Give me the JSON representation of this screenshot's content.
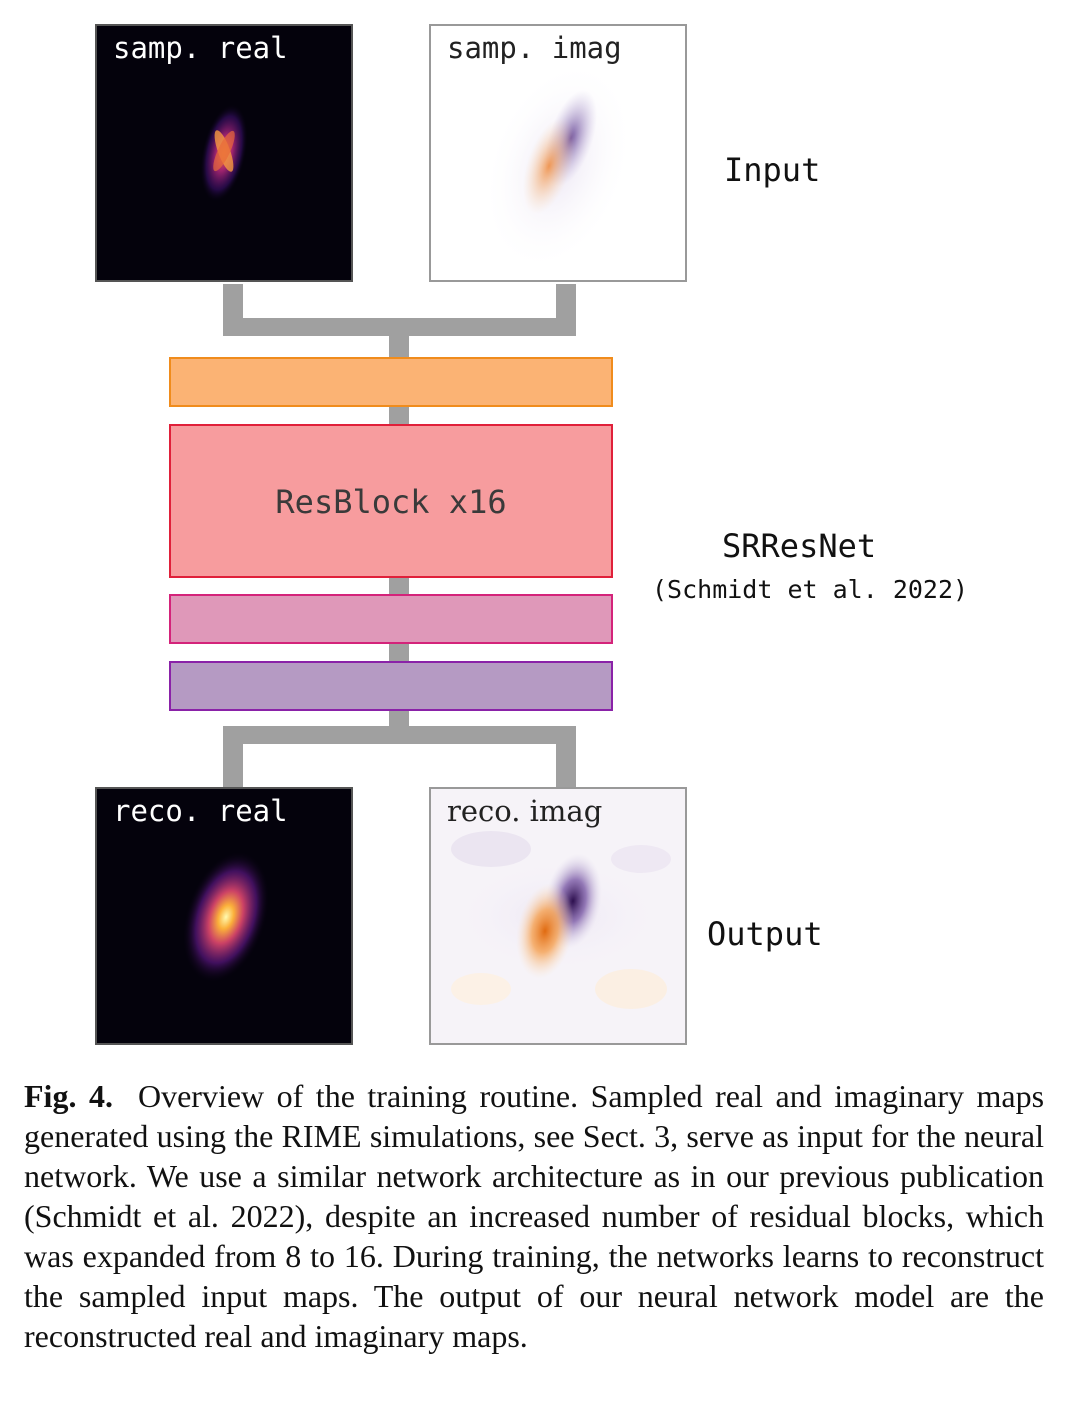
{
  "input_panels": {
    "real": {
      "label": "samp. real"
    },
    "imag": {
      "label": "samp. imag"
    }
  },
  "output_panels": {
    "real": {
      "label": "reco. real"
    },
    "imag": {
      "label": "reco. imag"
    }
  },
  "network": {
    "resblock_label": "ResBlock x16",
    "name": "SRResNet",
    "citation": "(Schmidt et al. 2022)",
    "layer_colors": [
      "#fbb374",
      "#f79c9e",
      "#df98b9",
      "#b59ac3"
    ]
  },
  "side_labels": {
    "input": "Input",
    "output": "Output"
  },
  "caption": {
    "label": "Fig. 4.",
    "text": "Overview of the training routine. Sampled real and imaginary maps generated using the RIME simulations, see Sect. 3, serve as input for the neural network. We use a similar network architecture as in our previous publication (Schmidt et al. 2022), despite an increased number of residual blocks, which was expanded from 8 to 16. During training, the networks learns to reconstruct the sampled input maps. The output of our neural network model are the reconstructed real and imaginary maps."
  }
}
